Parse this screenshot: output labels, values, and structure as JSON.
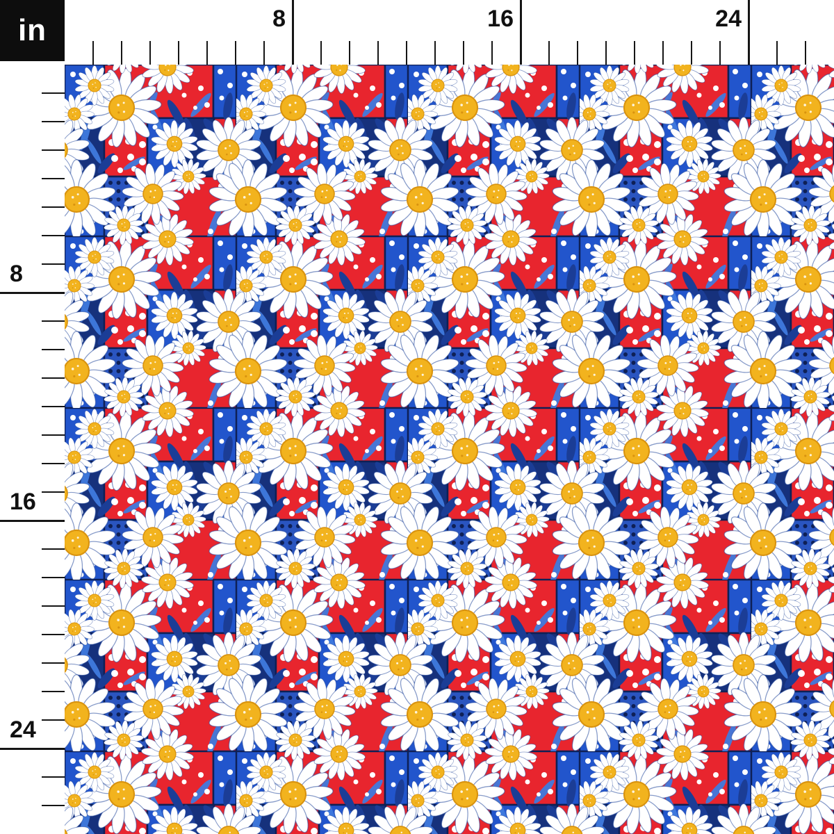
{
  "unit_label": "in",
  "rulers": {
    "unit": "in",
    "tick_interval_inches": 1,
    "label_interval_inches": 8,
    "top": {
      "labels": [
        "8",
        "16",
        "24"
      ]
    },
    "left": {
      "labels": [
        "8",
        "16",
        "24"
      ]
    }
  },
  "fabric": {
    "colors": {
      "red": "#e8252e",
      "blue": "#2255cc",
      "blue_medium": "#2a55c0",
      "navy": "#0e2056",
      "navy_patch": "#16317c",
      "navy_leaf": "#1b3d96",
      "light_blue": "#3f7ade",
      "yellow": "#f2b31e",
      "yellow_deep": "#d9930f",
      "white": "#ffffff",
      "ink": "#111111"
    }
  }
}
